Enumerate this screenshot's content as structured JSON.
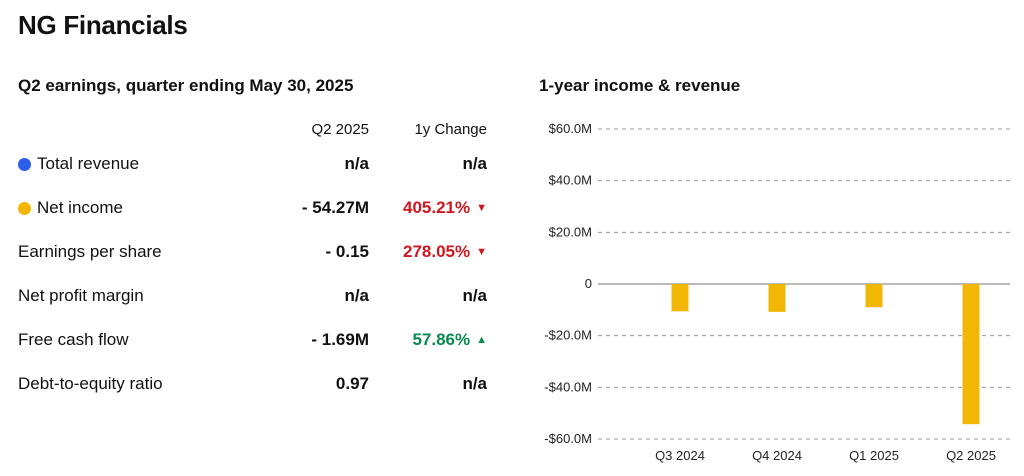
{
  "title": "NG Financials",
  "earnings": {
    "heading": "Q2 earnings, quarter ending May 30, 2025",
    "col_quarter": "Q2 2025",
    "col_change": "1y Change",
    "rows": [
      {
        "label": "Total revenue",
        "value": "n/a",
        "change": "n/a",
        "dot": "#2d5fe8",
        "trend": "none"
      },
      {
        "label": "Net income",
        "value": "- 54.27M",
        "change": "405.21%",
        "dot": "#f2b705",
        "trend": "down"
      },
      {
        "label": "Earnings per share",
        "value": "- 0.15",
        "change": "278.05%",
        "dot": "",
        "trend": "down"
      },
      {
        "label": "Net profit margin",
        "value": "n/a",
        "change": "n/a",
        "dot": "",
        "trend": "none"
      },
      {
        "label": "Free cash flow",
        "value": "- 1.69M",
        "change": "57.86%",
        "dot": "",
        "trend": "up"
      },
      {
        "label": "Debt-to-equity ratio",
        "value": "0.97",
        "change": "n/a",
        "dot": "",
        "trend": "none"
      }
    ],
    "down_arrow": "▼",
    "up_arrow": "▲",
    "colors": {
      "negative": "#d0161e",
      "positive": "#0b8a4f",
      "neutral": "#111111"
    }
  },
  "chart_heading": "1-year income & revenue",
  "chart_data": {
    "type": "bar",
    "categories": [
      "Q3 2024",
      "Q4 2024",
      "Q1 2025",
      "Q2 2025"
    ],
    "series": [
      {
        "name": "Net income",
        "color": "#f2b705",
        "values": [
          -10.6,
          -10.8,
          -9.0,
          -54.27
        ]
      }
    ],
    "ylim": [
      -60,
      60
    ],
    "ticks": [
      60,
      40,
      20,
      0,
      -20,
      -40,
      -60
    ],
    "tick_labels": [
      "$60.0M",
      "$40.0M",
      "$20.0M",
      "0",
      "-$20.0M",
      "-$40.0M",
      "-$60.0M"
    ],
    "grid": true
  }
}
